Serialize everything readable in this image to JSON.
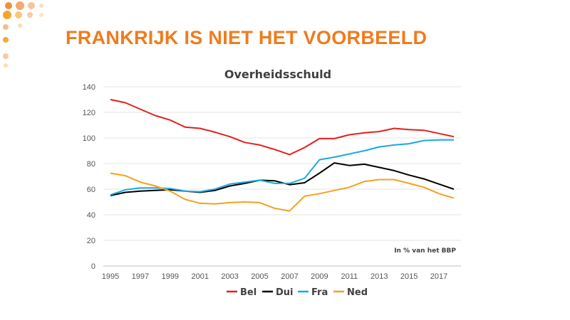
{
  "slide": {
    "title": "FRANKRIJK IS NIET HET VOORBEELD"
  },
  "colors": {
    "accent": "#f07b1d",
    "Bel": "#e3201b",
    "Dui": "#000000",
    "Fra": "#1aa9e1",
    "Ned": "#f4a11e"
  },
  "chart_data": {
    "type": "line",
    "title": "Overheidsschuld",
    "annotation": "In % van het BBP",
    "x": [
      1995,
      1996,
      1997,
      1998,
      1999,
      2000,
      2001,
      2002,
      2003,
      2004,
      2005,
      2006,
      2007,
      2008,
      2009,
      2010,
      2011,
      2012,
      2013,
      2014,
      2015,
      2016,
      2017,
      2018
    ],
    "xticks": [
      "1995",
      "1997",
      "1999",
      "2001",
      "2003",
      "2005",
      "2007",
      "2009",
      "2011",
      "2013",
      "2015",
      "2017"
    ],
    "yticks": [
      "0",
      "20",
      "40",
      "60",
      "80",
      "100",
      "120",
      "140"
    ],
    "ylim": [
      0,
      140
    ],
    "grid": true,
    "legend_position": "bottom",
    "series": [
      {
        "name": "Bel",
        "values": [
          130,
          127.5,
          122.5,
          117.5,
          114,
          108.5,
          107.5,
          104.5,
          101,
          96.5,
          94.5,
          91,
          87,
          92.5,
          99.5,
          99.5,
          102.5,
          104,
          105,
          107.5,
          106.5,
          106,
          103.5,
          101
        ]
      },
      {
        "name": "Dui",
        "values": [
          55,
          57.5,
          58.5,
          59,
          59.5,
          58.5,
          57.5,
          59,
          62.5,
          64.5,
          67,
          66.5,
          63.5,
          65,
          72.5,
          80.5,
          78.5,
          79.5,
          77,
          74.5,
          71,
          68,
          64,
          60
        ]
      },
      {
        "name": "Fra",
        "values": [
          55.5,
          59.5,
          61,
          61,
          60.5,
          58.5,
          58,
          60,
          64,
          65.5,
          67,
          64.5,
          64.5,
          68.5,
          83,
          85,
          87.5,
          90,
          93,
          94.5,
          95.5,
          98,
          98.5,
          98.5
        ]
      },
      {
        "name": "Ned",
        "values": [
          72.5,
          70.5,
          65.5,
          62.5,
          58.5,
          52,
          49,
          48.5,
          49.5,
          50,
          49.5,
          45,
          43,
          54.5,
          56.5,
          59,
          61.5,
          66,
          67.5,
          67.5,
          64.5,
          61.5,
          56.5,
          53
        ]
      }
    ]
  }
}
